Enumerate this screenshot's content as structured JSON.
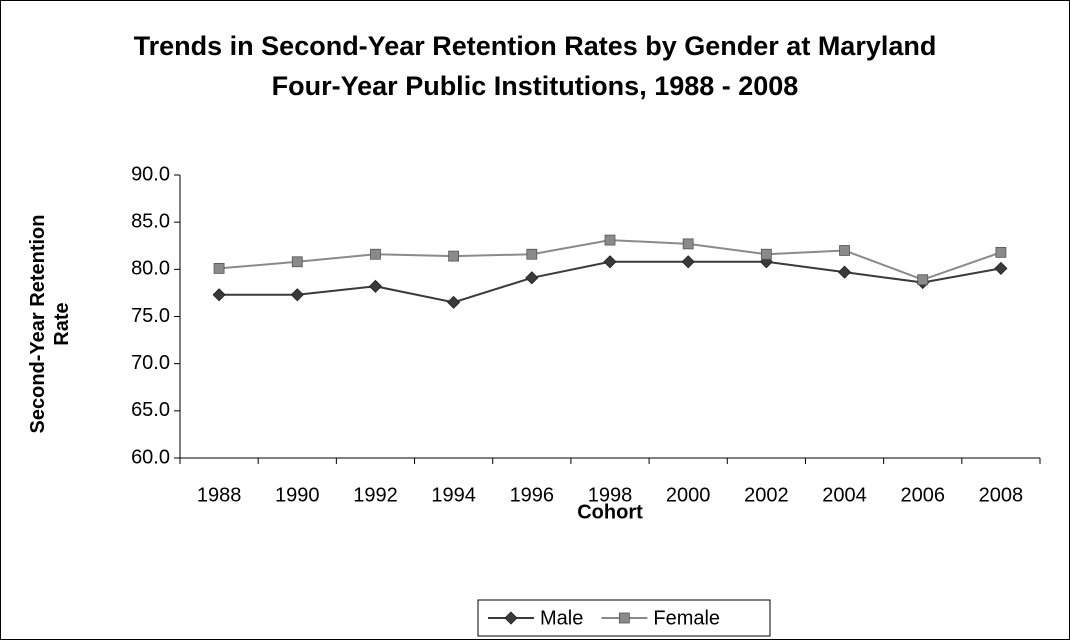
{
  "chart_data": {
    "type": "line",
    "title": "Trends in Second-Year Retention Rates by Gender at Maryland Four-Year Public Institutions, 1988 - 2008",
    "x_label": "Cohort",
    "y_label": "Second-Year Retention Rate",
    "categories": [
      "1988",
      "1990",
      "1992",
      "1994",
      "1996",
      "1998",
      "2000",
      "2002",
      "2004",
      "2006",
      "2008"
    ],
    "series": [
      {
        "name": "Male",
        "color": "#3a3a3a",
        "marker": "diamond",
        "values": [
          77.3,
          77.3,
          78.2,
          76.5,
          79.1,
          80.8,
          80.8,
          80.8,
          79.7,
          78.6,
          80.1
        ]
      },
      {
        "name": "Female",
        "color": "#8a8a8a",
        "marker": "square",
        "values": [
          80.1,
          80.8,
          81.6,
          81.4,
          81.6,
          83.1,
          82.7,
          81.6,
          82.0,
          78.9,
          81.8
        ]
      }
    ],
    "ylim": [
      60,
      90
    ],
    "yticks": [
      {
        "value": 60,
        "label": "60.0"
      },
      {
        "value": 65,
        "label": "65.0"
      },
      {
        "value": 70,
        "label": "70.0"
      },
      {
        "value": 75,
        "label": "75.0"
      },
      {
        "value": 80,
        "label": "80.0"
      },
      {
        "value": 85,
        "label": "85.0"
      },
      {
        "value": 90,
        "label": "90.0"
      }
    ],
    "grid": false,
    "legend": "bottom"
  }
}
